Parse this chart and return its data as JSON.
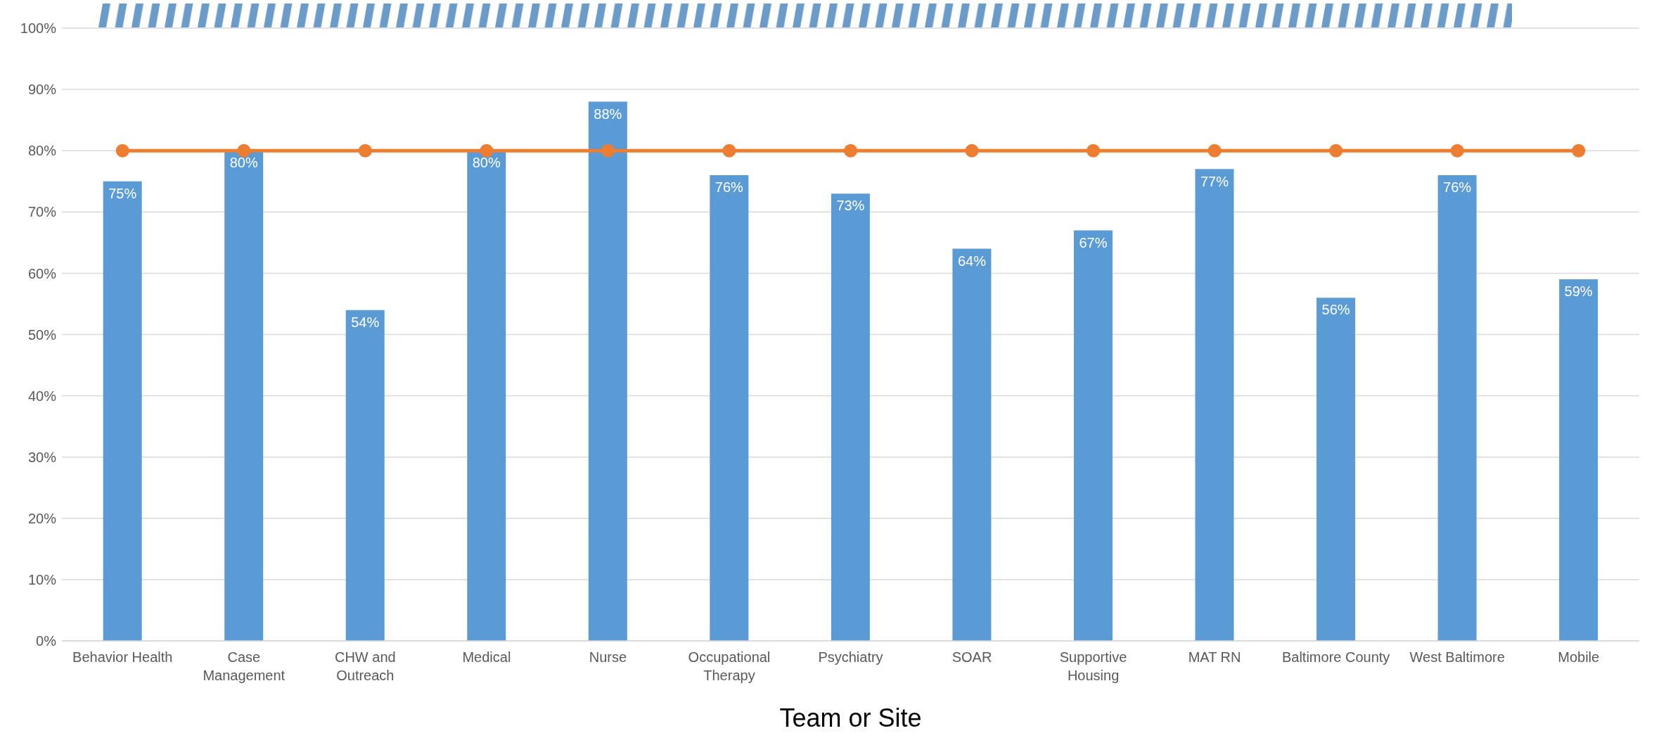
{
  "chart_data": {
    "type": "bar",
    "xlabel": "Team or Site",
    "categories": [
      "Behavior Health",
      "Case Management",
      "CHW and Outreach",
      "Medical",
      "Nurse",
      "Occupational Therapy",
      "Psychiatry",
      "SOAR",
      "Supportive Housing",
      "MAT RN",
      "Baltimore County",
      "West Baltimore",
      "Mobile"
    ],
    "series": [
      {
        "color": "#5b9bd5",
        "values": [
          75,
          80,
          54,
          80,
          88,
          76,
          73,
          64,
          67,
          77,
          56,
          76,
          59
        ],
        "value_labels": [
          "75%",
          "80%",
          "54%",
          "80%",
          "88%",
          "76%",
          "73%",
          "64%",
          "67%",
          "77%",
          "56%",
          "76%",
          "59%"
        ]
      },
      {
        "type": "line",
        "color": "#ed7d31",
        "values": [
          80,
          80,
          80,
          80,
          80,
          80,
          80,
          80,
          80,
          80,
          80,
          80,
          80
        ],
        "marker": "circle"
      }
    ],
    "ylim": [
      0,
      100
    ],
    "yticks": [
      {
        "value": 0,
        "label": "0%"
      },
      {
        "value": 10,
        "label": "10%"
      },
      {
        "value": 20,
        "label": "20%"
      },
      {
        "value": 30,
        "label": "30%"
      },
      {
        "value": 40,
        "label": "40%"
      },
      {
        "value": 50,
        "label": "50%"
      },
      {
        "value": 60,
        "label": "60%"
      },
      {
        "value": 70,
        "label": "70%"
      },
      {
        "value": 80,
        "label": "80%"
      },
      {
        "value": 90,
        "label": "90%"
      },
      {
        "value": 100,
        "label": "100%"
      }
    ],
    "grid": "y",
    "legend": false
  }
}
